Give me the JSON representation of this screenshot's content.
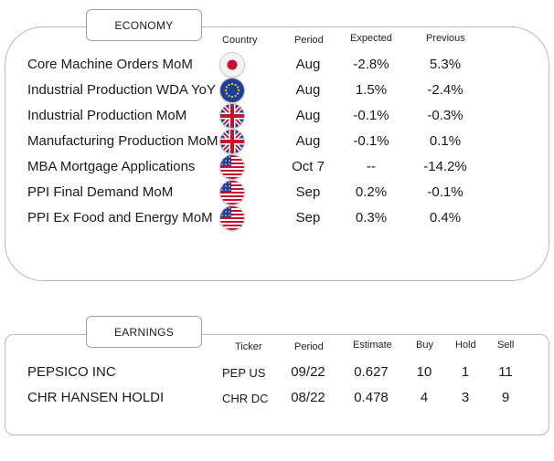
{
  "economy": {
    "section_title": "ECONOMY",
    "headers": {
      "country": "Country",
      "period": "Period",
      "expected": "Expected",
      "previous": "Previous"
    },
    "rows": [
      {
        "name": "Core Machine Orders MoM",
        "flag": "japan-flag-icon",
        "period": "Aug",
        "expected": "-2.8%",
        "previous": "5.3%"
      },
      {
        "name": "Industrial Production WDA YoY",
        "flag": "eu-flag-icon",
        "period": "Aug",
        "expected": "1.5%",
        "previous": "-2.4%"
      },
      {
        "name": "Industrial Production MoM",
        "flag": "uk-flag-icon",
        "period": "Aug",
        "expected": "-0.1%",
        "previous": "-0.3%"
      },
      {
        "name": "Manufacturing Production MoM",
        "flag": "uk-flag-icon",
        "period": "Aug",
        "expected": "-0.1%",
        "previous": "0.1%"
      },
      {
        "name": "MBA Mortgage Applications",
        "flag": "us-flag-icon",
        "period": "Oct 7",
        "expected": "--",
        "previous": "-14.2%"
      },
      {
        "name": "PPI Final Demand MoM",
        "flag": "us-flag-icon",
        "period": "Sep",
        "expected": "0.2%",
        "previous": "-0.1%"
      },
      {
        "name": "PPI Ex Food and Energy MoM",
        "flag": "us-flag-icon",
        "period": "Sep",
        "expected": "0.3%",
        "previous": "0.4%"
      }
    ]
  },
  "earnings": {
    "section_title": "EARNINGS",
    "headers": {
      "ticker": "Ticker",
      "period": "Period",
      "estimate": "Estimate",
      "buy": "Buy",
      "hold": "Hold",
      "sell": "Sell"
    },
    "rows": [
      {
        "name": "PEPSICO INC",
        "ticker": "PEP US",
        "period": "09/22",
        "estimate": "0.627",
        "buy": "10",
        "hold": "1",
        "sell": "11"
      },
      {
        "name": "CHR HANSEN HOLDI",
        "ticker": "CHR DC",
        "period": "08/22",
        "estimate": "0.478",
        "buy": "4",
        "hold": "3",
        "sell": "9"
      }
    ]
  }
}
